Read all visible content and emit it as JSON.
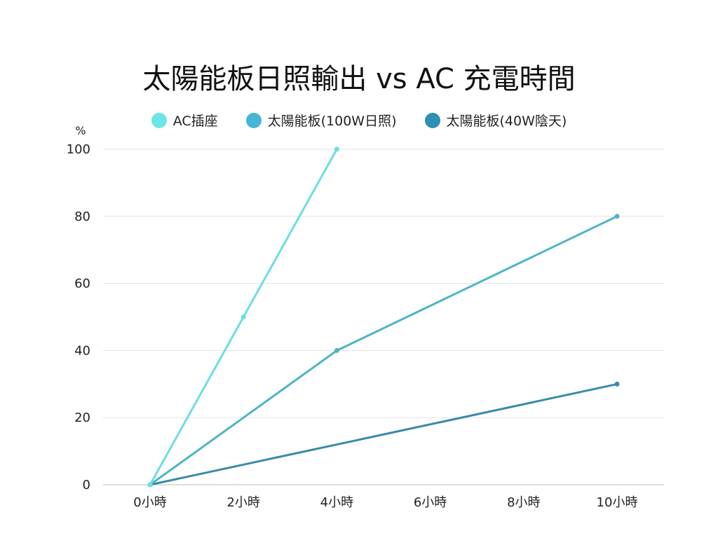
{
  "chart_data": {
    "type": "line",
    "title": "太陽能板日照輸出 vs AC 充電時間",
    "ylabel": "%",
    "xlabel": "",
    "categories": [
      "0小時",
      "2小時",
      "4小時",
      "6小時",
      "8小時",
      "10小時"
    ],
    "x": [
      0,
      2,
      4,
      6,
      8,
      10
    ],
    "ylim": [
      0,
      100
    ],
    "yticks": [
      0,
      20,
      40,
      60,
      80,
      100
    ],
    "grid": true,
    "legend_position": "top-center",
    "series": [
      {
        "name": "AC插座",
        "color": "#6fdde0",
        "points": [
          [
            0,
            0
          ],
          [
            2,
            50
          ],
          [
            4,
            100
          ]
        ]
      },
      {
        "name": "太陽能板(100W日照)",
        "color": "#4eb5c3",
        "points": [
          [
            0,
            0
          ],
          [
            4,
            40
          ],
          [
            10,
            80
          ]
        ]
      },
      {
        "name": "太陽能板(40W陰天)",
        "color": "#3a8aa9",
        "points": [
          [
            0,
            0
          ],
          [
            10,
            30
          ]
        ]
      }
    ],
    "legend_colors": [
      "#6ee5e7",
      "#45b7d4",
      "#2f8fb5"
    ]
  }
}
